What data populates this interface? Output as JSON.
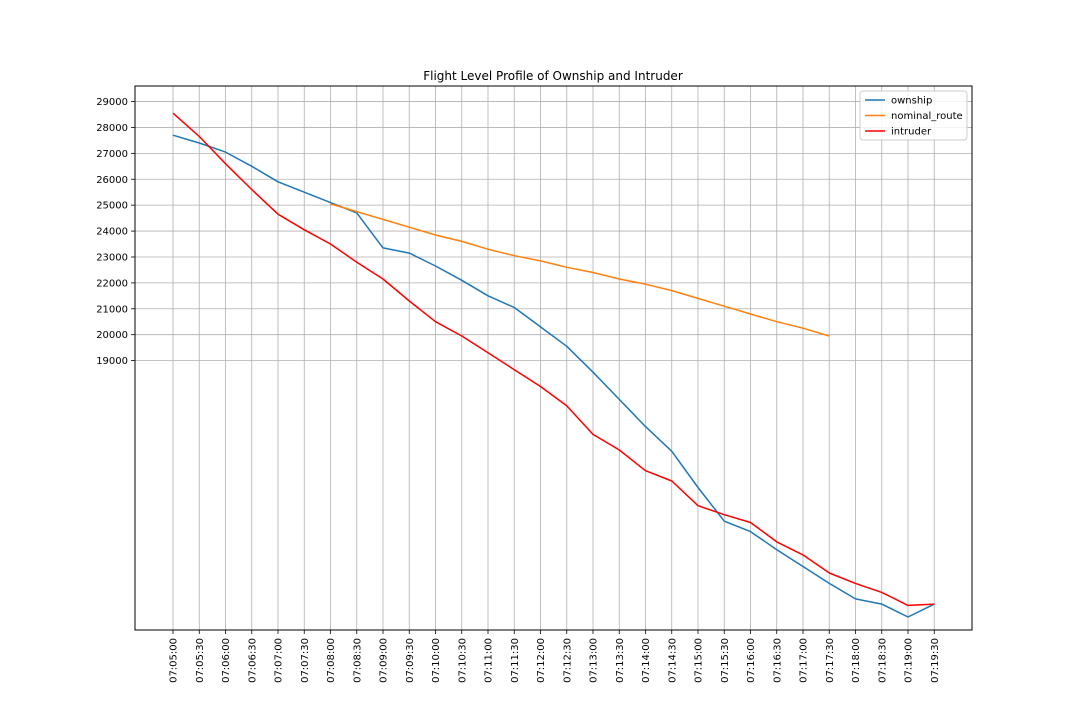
{
  "chart_data": {
    "type": "line",
    "title": "Flight Level Profile of Ownship and Intruder",
    "xlabel": "",
    "ylabel": "",
    "grid": true,
    "legend_position": "top-right",
    "x_ticks": [
      "07:05:00",
      "07:05:30",
      "07:06:00",
      "07:06:30",
      "07:07:00",
      "07:07:30",
      "07:08:00",
      "07:08:30",
      "07:09:00",
      "07:09:30",
      "07:10:00",
      "07:10:30",
      "07:11:00",
      "07:11:30",
      "07:12:00",
      "07:12:30",
      "07:13:00",
      "07:13:30",
      "07:14:00",
      "07:14:30",
      "07:15:00",
      "07:15:30",
      "07:16:00",
      "07:16:30",
      "07:17:00",
      "07:17:30",
      "07:18:00",
      "07:18:30",
      "07:19:00",
      "07:19:30"
    ],
    "y_ticks": [
      19000,
      20000,
      21000,
      22000,
      23000,
      24000,
      25000,
      26000,
      27000,
      28000,
      29000
    ],
    "ylim": [
      8600,
      29600
    ],
    "series": [
      {
        "name": "ownship",
        "color": "#1f77b4",
        "x": [
          "07:05:00",
          "07:05:30",
          "07:06:00",
          "07:06:30",
          "07:07:00",
          "07:07:30",
          "07:08:00",
          "07:08:30",
          "07:09:00",
          "07:09:30",
          "07:10:00",
          "07:10:30",
          "07:11:00",
          "07:11:30",
          "07:12:00",
          "07:12:30",
          "07:13:00",
          "07:13:30",
          "07:14:00",
          "07:14:30",
          "07:15:00",
          "07:15:30",
          "07:16:00",
          "07:16:30",
          "07:17:00",
          "07:17:30",
          "07:18:00",
          "07:18:30",
          "07:19:00",
          "07:19:30"
        ],
        "values": [
          27700,
          27400,
          27050,
          26500,
          25900,
          25500,
          25100,
          24700,
          23350,
          23150,
          22650,
          22100,
          21500,
          21050,
          20300,
          19550,
          18550,
          17500,
          16450,
          15500,
          14100,
          12800,
          12400,
          11700,
          11050,
          10400,
          9800,
          9600,
          9100,
          9600
        ]
      },
      {
        "name": "nominal_route",
        "color": "#ff7f0e",
        "x": [
          "07:08:00",
          "07:08:30",
          "07:09:00",
          "07:09:30",
          "07:10:00",
          "07:10:30",
          "07:11:00",
          "07:11:30",
          "07:12:00",
          "07:12:30",
          "07:13:00",
          "07:13:30",
          "07:14:00",
          "07:14:30",
          "07:15:00",
          "07:15:30",
          "07:16:00",
          "07:16:30",
          "07:17:00",
          "07:17:30"
        ],
        "values": [
          25050,
          24750,
          24450,
          24150,
          23850,
          23600,
          23300,
          23050,
          22850,
          22600,
          22400,
          22150,
          21950,
          21700,
          21400,
          21100,
          20800,
          20500,
          20250,
          19950
        ]
      },
      {
        "name": "intruder",
        "color": "#ff0000",
        "x": [
          "07:05:00",
          "07:05:30",
          "07:06:00",
          "07:06:30",
          "07:07:00",
          "07:07:30",
          "07:08:00",
          "07:08:30",
          "07:09:00",
          "07:09:30",
          "07:10:00",
          "07:10:30",
          "07:11:00",
          "07:11:30",
          "07:12:00",
          "07:12:30",
          "07:13:00",
          "07:13:30",
          "07:14:00",
          "07:14:30",
          "07:15:00",
          "07:15:30",
          "07:16:00",
          "07:16:30",
          "07:17:00",
          "07:17:30",
          "07:18:00",
          "07:18:30",
          "07:19:00",
          "07:19:30"
        ],
        "values": [
          28550,
          27650,
          26600,
          25600,
          24650,
          24050,
          23500,
          22800,
          22150,
          21300,
          20500,
          19950,
          19300,
          18650,
          18000,
          17250,
          16150,
          15550,
          14750,
          14350,
          13400,
          13050,
          12750,
          12000,
          11500,
          10800,
          10400,
          10050,
          9550,
          9600
        ]
      }
    ]
  }
}
